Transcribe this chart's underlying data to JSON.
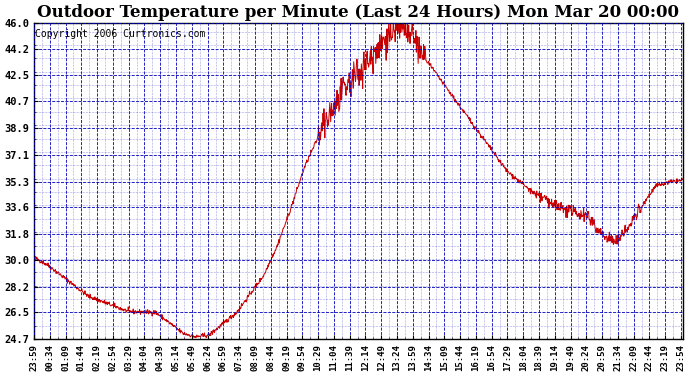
{
  "title": "Outdoor Temperature per Minute (Last 24 Hours) Mon Mar 20 00:00",
  "copyright": "Copyright 2006 Curtronics.com",
  "yticks": [
    46.0,
    44.2,
    42.5,
    40.7,
    38.9,
    37.1,
    35.3,
    33.6,
    31.8,
    30.0,
    28.2,
    26.5,
    24.7
  ],
  "ymin": 24.7,
  "ymax": 46.0,
  "line_color": "#cc0000",
  "grid_color": "#0000bb",
  "bg_color": "#ffffff",
  "plot_bg_color": "#ffffff",
  "title_fontsize": 12,
  "copyright_fontsize": 7,
  "xtick_fontsize": 6.5,
  "ytick_fontsize": 7.5,
  "num_points": 1440,
  "x_label_step_minutes": 35
}
